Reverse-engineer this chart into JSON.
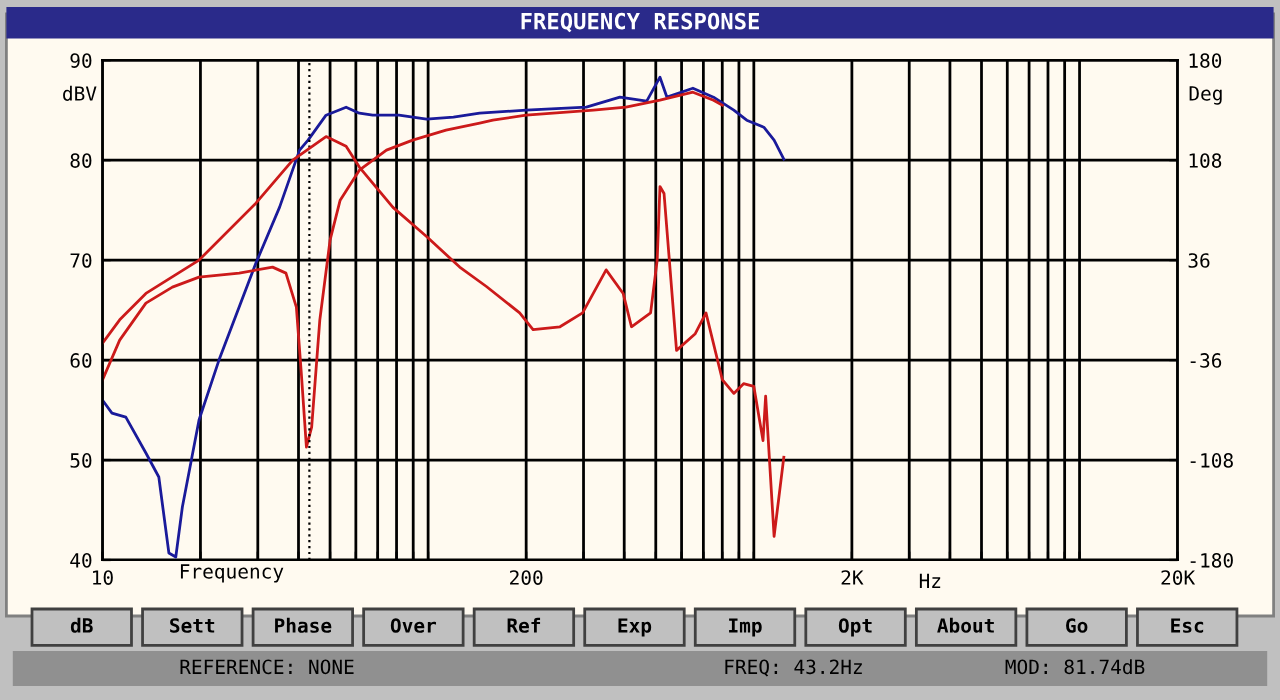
{
  "chart_data": {
    "type": "line",
    "title": "FREQUENCY RESPONSE",
    "xlabel": "Frequency",
    "ylabel": "dBV",
    "y2label": "Deg",
    "log": "x",
    "grid": true,
    "marker": "none",
    "line_style": "solid",
    "xlim": [
      10,
      20000
    ],
    "ylim": [
      40,
      90
    ],
    "y2lim": [
      -180,
      180
    ],
    "xticks": [
      10,
      {
        "value": 20,
        "label": null
      },
      {
        "value": 30,
        "label": null
      },
      {
        "value": 40,
        "label": null
      },
      {
        "value": 50,
        "label": null
      },
      {
        "value": 60,
        "label": null
      },
      {
        "value": 70,
        "label": null
      },
      {
        "value": 80,
        "label": null
      },
      {
        "value": 90,
        "label": null
      },
      {
        "value": 100,
        "label": null
      },
      200,
      {
        "value": 300,
        "label": null
      },
      {
        "value": 400,
        "label": null
      },
      {
        "value": 500,
        "label": null
      },
      {
        "value": 600,
        "label": null
      },
      {
        "value": 700,
        "label": null
      },
      {
        "value": 800,
        "label": null
      },
      {
        "value": 900,
        "label": null
      },
      {
        "value": 1000,
        "label": null
      },
      {
        "value": 2000,
        "label": "2K"
      },
      {
        "value": 3000,
        "label": null
      },
      {
        "value": 4000,
        "label": null
      },
      {
        "value": 5000,
        "label": null
      },
      {
        "value": 6000,
        "label": null
      },
      {
        "value": 7000,
        "label": null
      },
      {
        "value": 8000,
        "label": null
      },
      {
        "value": 9000,
        "label": null
      },
      {
        "value": 10000,
        "label": null
      },
      {
        "value": 20000,
        "label": "20K"
      }
    ],
    "yticks": [
      40,
      50,
      60,
      70,
      80,
      90
    ],
    "y2ticks": [
      -180,
      -108,
      -36,
      36,
      108,
      180
    ],
    "ref_lines": [
      {
        "axis": "x",
        "value": 43.2,
        "color": "#000000",
        "line_style": "dotted"
      }
    ],
    "series": [
      {
        "color": "#1a1a9a",
        "x": [
          10,
          10.7,
          11.8,
          13.6,
          14.9,
          16.0,
          16.8,
          17.6,
          19.8,
          22.8,
          29.6,
          35.0,
          40.3,
          42.8,
          48.6,
          56.0,
          61.5,
          67.6,
          81.4,
          98.9,
          119.6,
          144,
          200,
          306,
          388,
          469,
          515,
          541,
          650,
          752,
          868,
          951,
          1073,
          1154,
          1236
        ],
        "values": [
          56.0,
          54.7,
          54.3,
          50.7,
          48.3,
          40.7,
          40.3,
          45.3,
          54,
          60,
          69.7,
          75.3,
          81,
          82,
          84.5,
          85.3,
          84.7,
          84.5,
          84.5,
          84.1,
          84.3,
          84.7,
          85,
          85.3,
          86.3,
          85.9,
          88.3,
          86.3,
          87.2,
          86.3,
          85,
          84,
          83.3,
          82,
          80.1
        ]
      },
      {
        "color": "#cc1a1a",
        "x": [
          10,
          11.3,
          13.6,
          16.4,
          19.8,
          26.3,
          33.3,
          36.6,
          39.4,
          40.8,
          42.3,
          43.9,
          46.5,
          50,
          53.7,
          61.5,
          74.5,
          89.7,
          113.5,
          144,
          158,
          200,
          322,
          405,
          515,
          650,
          752,
          800
        ],
        "values": [
          58,
          62,
          65.7,
          67.3,
          68.3,
          68.7,
          69.3,
          68.7,
          65.3,
          58.7,
          51.3,
          53.3,
          64,
          72,
          76,
          79,
          81,
          82,
          83,
          83.7,
          84,
          84.5,
          85,
          85.3,
          86,
          86.8,
          86,
          85.5
        ]
      },
      {
        "color": "#cc1a1a",
        "axis": "y2",
        "x": [
          10,
          11.3,
          13.6,
          19.8,
          29.6,
          38.4,
          48.6,
          56,
          61.5,
          78,
          98.9,
          125,
          151,
          191,
          210,
          254,
          298,
          352,
          397,
          421,
          482,
          505,
          515,
          530,
          579,
          661,
          713,
          800,
          868,
          930,
          1000,
          1067,
          1087,
          1154,
          1236
        ],
        "values": [
          -24,
          -7,
          12,
          36,
          77,
          108,
          125,
          118,
          103,
          74,
          53,
          31,
          17,
          -2,
          -14,
          -12,
          -2,
          29,
          12,
          -12,
          -2,
          36,
          89,
          84,
          -29,
          -17,
          -2,
          -50,
          -60,
          -53,
          -55,
          -94,
          -62,
          -163,
          -106
        ]
      }
    ],
    "annotations": [
      "Hz",
      "dB",
      "Sett",
      "Phase",
      "Over",
      "Ref",
      "Exp",
      "Imp",
      "Opt",
      "About",
      "Go",
      "Esc",
      "REFERENCE: NONE",
      "FREQ: 43.2Hz",
      "MOD: 81.74dB"
    ]
  }
}
